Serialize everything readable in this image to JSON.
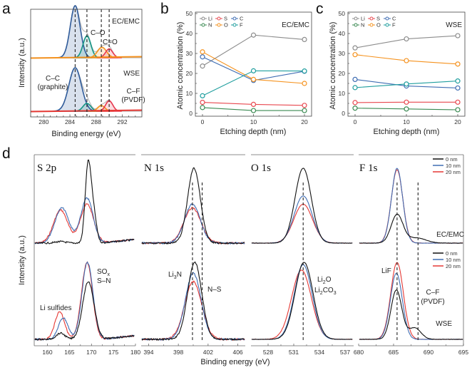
{
  "panels": {
    "a": {
      "letter": "a"
    },
    "b": {
      "letter": "b"
    },
    "c": {
      "letter": "c"
    },
    "d": {
      "letter": "d"
    }
  },
  "colors": {
    "Li": "#8c8c8c",
    "S": "#e8484f",
    "C": "#3f6db3",
    "N": "#3a8a52",
    "O": "#f5921e",
    "F": "#1f9e9e",
    "nm0": "#111111",
    "nm10": "#3f6db3",
    "nm20": "#e53935",
    "cc": "#2f5b9a",
    "co": "#149484",
    "c_eq_o": "#f5921e",
    "cf": "#e8384f",
    "base_ecemc": "#f5921e",
    "base_wse": "#e53935"
  },
  "chart_data": [
    {
      "id": "a",
      "type": "line",
      "title": "",
      "xlabel": "Binding energy (eV)",
      "ylabel": "Intensity (a.u.)",
      "xlim": [
        278,
        295
      ],
      "xticks": [
        280,
        284,
        288,
        292
      ],
      "reversed_x": false,
      "annotations": [
        "EC/EMC",
        "WSE",
        "C–O",
        "C=O",
        "C–C",
        "(graphite)",
        "C–F",
        "(PVDF)"
      ],
      "dashed_lines_eV": [
        284.8,
        286.6,
        288.8,
        290.0
      ],
      "series": [
        {
          "name": "EC/EMC C–C",
          "center": 284.8,
          "amp": 1.0,
          "width": 0.75
        },
        {
          "name": "EC/EMC C–O",
          "center": 286.6,
          "amp": 0.42,
          "width": 0.6
        },
        {
          "name": "EC/EMC C=O",
          "center": 288.9,
          "amp": 0.2,
          "width": 0.7
        },
        {
          "name": "EC/EMC C–F",
          "center": 290.0,
          "amp": 0.17,
          "width": 0.55
        },
        {
          "name": "WSE C–C",
          "center": 284.8,
          "amp": 1.0,
          "width": 0.95
        },
        {
          "name": "WSE C–O",
          "center": 286.6,
          "amp": 0.18,
          "width": 0.6
        },
        {
          "name": "WSE C=O",
          "center": 288.8,
          "amp": 0.13,
          "width": 0.55
        },
        {
          "name": "WSE C–F",
          "center": 290.0,
          "amp": 0.24,
          "width": 0.55
        }
      ]
    },
    {
      "id": "b",
      "type": "line",
      "title": "EC/EMC",
      "xlabel": "Etching depth (nm)",
      "ylabel": "Atomic concentration (%)",
      "x": [
        0,
        10,
        20
      ],
      "xticks": [
        0,
        10,
        20
      ],
      "ylim": [
        0,
        50
      ],
      "yticks": [
        0,
        10,
        20,
        30,
        40,
        50
      ],
      "legend": "top-left",
      "series": [
        {
          "name": "Li",
          "values": [
            23.7,
            39.2,
            37.0
          ]
        },
        {
          "name": "S",
          "values": [
            5.5,
            4.5,
            4.0
          ]
        },
        {
          "name": "C",
          "values": [
            28.3,
            16.5,
            21.1
          ]
        },
        {
          "name": "N",
          "values": [
            2.9,
            1.4,
            1.4
          ]
        },
        {
          "name": "O",
          "values": [
            30.8,
            17.0,
            15.0
          ]
        },
        {
          "name": "F",
          "values": [
            8.8,
            21.3,
            21.2
          ]
        }
      ]
    },
    {
      "id": "c",
      "type": "line",
      "title": "WSE",
      "xlabel": "Etching depth (nm)",
      "ylabel": "Atomic concentration (%)",
      "x": [
        0,
        10,
        20
      ],
      "xticks": [
        0,
        10,
        20
      ],
      "ylim": [
        0,
        50
      ],
      "yticks": [
        0,
        10,
        20,
        30,
        40,
        50
      ],
      "legend": "top-left",
      "series": [
        {
          "name": "Li",
          "values": [
            32.8,
            37.3,
            38.9
          ]
        },
        {
          "name": "S",
          "values": [
            5.4,
            5.6,
            5.6
          ]
        },
        {
          "name": "C",
          "values": [
            17.0,
            13.7,
            12.7
          ]
        },
        {
          "name": "N",
          "values": [
            2.6,
            2.2,
            1.8
          ]
        },
        {
          "name": "O",
          "values": [
            29.4,
            26.4,
            24.7
          ]
        },
        {
          "name": "F",
          "values": [
            12.9,
            14.7,
            16.2
          ]
        }
      ]
    },
    {
      "id": "d",
      "type": "line",
      "xlabel": "Binding energy (eV)",
      "ylabel": "Intensity (a.u.)",
      "legend": [
        "0 nm",
        "10 nm",
        "20 nm"
      ],
      "rows": [
        "EC/EMC",
        "WSE"
      ],
      "subplots": [
        {
          "name": "S 2p",
          "xlim": [
            157,
            180
          ],
          "xticks": [
            160,
            165,
            170,
            175,
            180
          ],
          "annotations": [
            "Li sulfides",
            "SOx",
            "S–N"
          ],
          "dashed_lines_eV": [],
          "ecemc": [
            {
              "name": "0 nm",
              "peaks": [
                [
                  163.0,
                  0.02,
                  1.2
                ],
                [
                  169.2,
                  1.0,
                  0.65
                ],
                [
                  170.4,
                  0.42,
                  0.7
                ]
              ]
            },
            {
              "name": "10 nm",
              "peaks": [
                [
                  163.3,
                  0.47,
                  1.6
                ],
                [
                  169.0,
                  0.6,
                  1.4
                ]
              ]
            },
            {
              "name": "20 nm",
              "peaks": [
                [
                  163.0,
                  0.44,
                  1.6
                ],
                [
                  169.0,
                  0.52,
                  1.5
                ]
              ]
            }
          ],
          "wse": [
            {
              "name": "0 nm",
              "peaks": [
                [
                  163.0,
                  0.08,
                  1.0
                ],
                [
                  169.3,
                  0.75,
                  1.3
                ]
              ]
            },
            {
              "name": "10 nm",
              "peaks": [
                [
                  163.6,
                  0.28,
                  1.1
                ],
                [
                  169.1,
                  1.0,
                  1.25
                ]
              ]
            },
            {
              "name": "20 nm",
              "peaks": [
                [
                  162.8,
                  0.36,
                  1.1
                ],
                [
                  169.0,
                  1.0,
                  1.25
                ]
              ]
            }
          ]
        },
        {
          "name": "N 1s",
          "xlim": [
            393,
            407
          ],
          "xticks": [
            394,
            398,
            402,
            406
          ],
          "annotations": [
            "Li3N",
            "N–S"
          ],
          "dashed_lines_eV": [
            399.9,
            401.2
          ],
          "ecemc": [
            {
              "name": "0 nm",
              "peaks": [
                [
                  400.1,
                  1.0,
                  0.85
                ]
              ]
            },
            {
              "name": "10 nm",
              "peaks": [
                [
                  399.9,
                  0.52,
                  1.05
                ]
              ]
            },
            {
              "name": "20 nm",
              "peaks": [
                [
                  399.9,
                  0.47,
                  1.15
                ]
              ]
            }
          ],
          "wse": [
            {
              "name": "0 nm",
              "peaks": [
                [
                  400.2,
                  1.0,
                  0.95
                ]
              ]
            },
            {
              "name": "10 nm",
              "peaks": [
                [
                  400.0,
                  0.86,
                  1.05
                ]
              ]
            },
            {
              "name": "20 nm",
              "peaks": [
                [
                  400.0,
                  0.75,
                  1.15
                ]
              ]
            }
          ]
        },
        {
          "name": "O 1s",
          "xlim": [
            526,
            538
          ],
          "xticks": [
            528,
            531,
            534,
            537
          ],
          "annotations": [
            "Li2O",
            "Li2CO3"
          ],
          "dashed_lines_eV": [
            532.1
          ],
          "ecemc": [
            {
              "name": "0 nm",
              "peaks": [
                [
                  532.1,
                  1.0,
                  0.95
                ]
              ]
            },
            {
              "name": "10 nm",
              "peaks": [
                [
                  532.1,
                  0.63,
                  1.05
                ]
              ]
            },
            {
              "name": "20 nm",
              "peaks": [
                [
                  532.1,
                  0.52,
                  1.1
                ]
              ]
            }
          ],
          "wse": [
            {
              "name": "0 nm",
              "peaks": [
                [
                  532.2,
                  1.0,
                  1.05
                ]
              ]
            },
            {
              "name": "10 nm",
              "peaks": [
                [
                  532.1,
                  0.97,
                  1.05
                ]
              ]
            },
            {
              "name": "20 nm",
              "peaks": [
                [
                  531.9,
                  0.9,
                  1.15
                ]
              ]
            }
          ]
        },
        {
          "name": "F 1s",
          "xlim": [
            680,
            695
          ],
          "xticks": [
            680,
            685,
            690,
            695
          ],
          "annotations": [
            "EC/EMC",
            "WSE",
            "LiF",
            "C–F",
            "(PVDF)"
          ],
          "dashed_lines_eV": [
            685.5,
            688.5
          ],
          "ecemc": [
            {
              "name": "0 nm",
              "peaks": [
                [
                  685.5,
                  0.38,
                  0.85
                ],
                [
                  688.3,
                  0.07,
                  1.3
                ]
              ]
            },
            {
              "name": "10 nm",
              "peaks": [
                [
                  685.5,
                  1.0,
                  0.8
                ]
              ]
            },
            {
              "name": "20 nm",
              "peaks": [
                [
                  685.5,
                  0.98,
                  0.82
                ]
              ]
            }
          ],
          "wse": [
            {
              "name": "0 nm",
              "peaks": [
                [
                  685.4,
                  0.64,
                  0.78
                ],
                [
                  688.0,
                  0.15,
                  0.9
                ]
              ]
            },
            {
              "name": "10 nm",
              "peaks": [
                [
                  685.4,
                  0.86,
                  0.85
                ]
              ]
            },
            {
              "name": "20 nm",
              "peaks": [
                [
                  685.5,
                  1.0,
                  0.9
                ]
              ]
            }
          ]
        }
      ]
    }
  ],
  "labels": {
    "a_xlabel": "Binding energy (eV)",
    "a_ylabel": "Intensity (a.u.)",
    "a_ecemc": "EC/EMC",
    "a_wse": "WSE",
    "a_co": "C–O",
    "a_ceqo": "C=O",
    "a_cc": "C–C",
    "a_graphite": "(graphite)",
    "a_cf": "C–F",
    "a_pvdf": "(PVDF)",
    "bc_xlabel": "Etching depth (nm)",
    "bc_ylabel": "Atomic concentration (%)",
    "b_title": "EC/EMC",
    "c_title": "WSE",
    "d_xlabel": "Binding energy (eV)",
    "d_ylabel": "Intensity (a.u.)",
    "d_s2p": "S 2p",
    "d_n1s": "N 1s",
    "d_o1s": "O 1s",
    "d_f1s": "F 1s",
    "d_lisulfides": "Li sulfides",
    "d_sox": "SO",
    "d_sox_sub": "x",
    "d_sn": "S–N",
    "d_li3n": "Li",
    "d_li3n_sub": "3",
    "d_li3n_end": "N",
    "d_ns": "N–S",
    "d_li2o_a": "Li",
    "d_li2o_sub": "2",
    "d_li2o_b": "O",
    "d_li2co3_a": "Li",
    "d_li2co3_sub1": "2",
    "d_li2co3_b": "CO",
    "d_li2co3_sub2": "3",
    "d_lif": "LiF",
    "d_cf": "C–F",
    "d_pvdf": "(PVDF)",
    "d_ecemc": "EC/EMC",
    "d_wse": "WSE",
    "legend_0": "0 nm",
    "legend_10": "10 nm",
    "legend_20": "20 nm"
  }
}
